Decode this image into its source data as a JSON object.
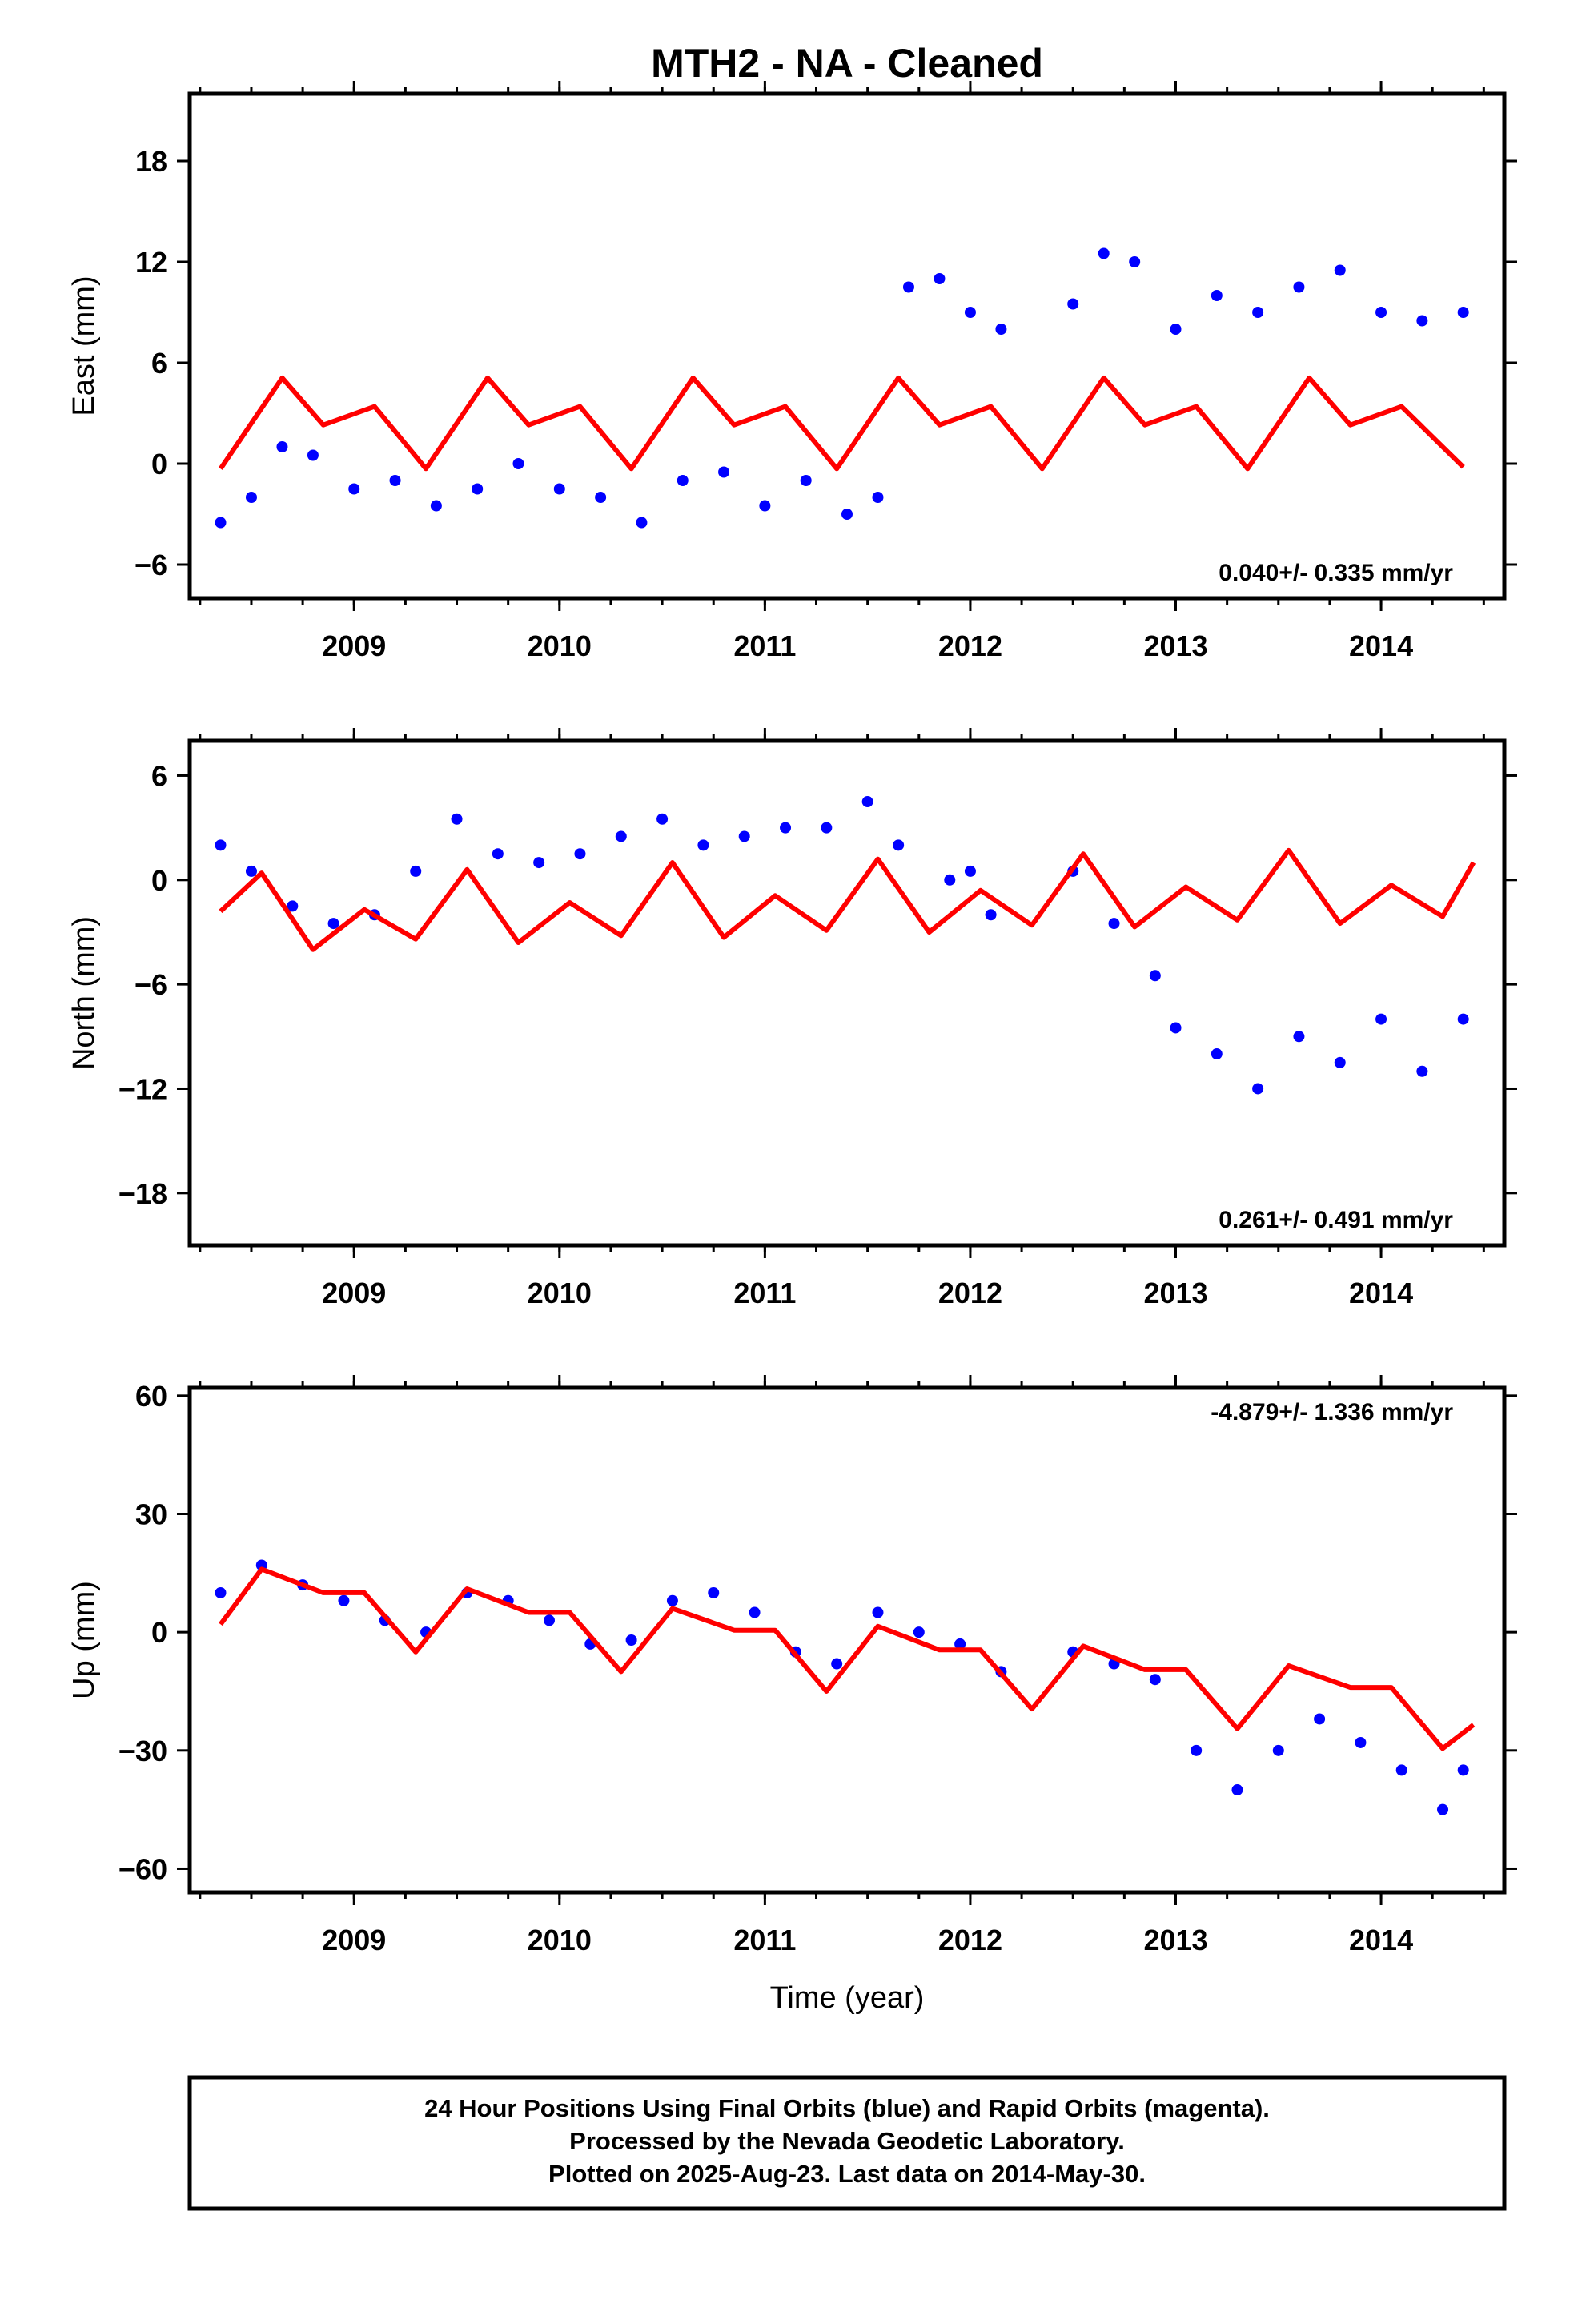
{
  "title": "MTH2  - NA - Cleaned",
  "colors": {
    "final_orbits": "#0000ff",
    "model": "#ff0000",
    "frame": "#000000"
  },
  "chart_data": [
    {
      "type": "scatter",
      "ylabel": "East (mm)",
      "xlabel": "",
      "xlim": [
        2008.2,
        2014.6
      ],
      "ylim": [
        -8,
        22
      ],
      "xticks": [
        2009,
        2010,
        2011,
        2012,
        2013,
        2014
      ],
      "yticks": [
        -6,
        0,
        6,
        12,
        18
      ],
      "rate": "0.040+/- 0.335 mm/yr",
      "rate_position": "bottom-right",
      "series": [
        {
          "role": "observations",
          "x": [
            2008.35,
            2008.5,
            2008.65,
            2008.8,
            2009.0,
            2009.2,
            2009.4,
            2009.6,
            2009.8,
            2010.0,
            2010.2,
            2010.4,
            2010.6,
            2010.8,
            2011.0,
            2011.2,
            2011.4,
            2011.55,
            2011.7,
            2011.85,
            2012.0,
            2012.15,
            2012.5,
            2012.65,
            2012.8,
            2013.0,
            2013.2,
            2013.4,
            2013.6,
            2013.8,
            2014.0,
            2014.2,
            2014.4
          ],
          "y": [
            -3.5,
            -2.0,
            1.0,
            0.5,
            -1.5,
            -1.0,
            -2.5,
            -1.5,
            0.0,
            -1.5,
            -2.0,
            -3.5,
            -1.0,
            -0.5,
            -2.5,
            -1.0,
            -3.0,
            -2.0,
            10.5,
            11.0,
            9.0,
            8.0,
            9.5,
            12.5,
            12.0,
            8.0,
            10.0,
            9.0,
            10.5,
            11.5,
            9.0,
            8.5,
            9.0
          ]
        },
        {
          "role": "model",
          "x": [
            2008.35,
            2008.65,
            2008.85,
            2009.1,
            2009.35,
            2009.65,
            2009.85,
            2010.1,
            2010.35,
            2010.65,
            2010.85,
            2011.1,
            2011.35,
            2011.65,
            2011.85,
            2012.1,
            2012.35,
            2012.65,
            2012.85,
            2013.1,
            2013.35,
            2013.65,
            2013.85,
            2014.1,
            2014.4
          ],
          "y": [
            -0.3,
            5.1,
            2.3,
            3.4,
            -0.3,
            5.1,
            2.3,
            3.4,
            -0.3,
            5.1,
            2.3,
            3.4,
            -0.3,
            5.1,
            2.3,
            3.4,
            -0.3,
            5.1,
            2.3,
            3.4,
            -0.3,
            5.1,
            2.3,
            3.4,
            -0.2
          ]
        }
      ]
    },
    {
      "type": "scatter",
      "ylabel": "North (mm)",
      "xlabel": "",
      "xlim": [
        2008.2,
        2014.6
      ],
      "ylim": [
        -21,
        8
      ],
      "xticks": [
        2009,
        2010,
        2011,
        2012,
        2013,
        2014
      ],
      "yticks": [
        -18,
        -12,
        -6,
        0,
        6
      ],
      "rate": "0.261+/- 0.491 mm/yr",
      "rate_position": "bottom-right",
      "series": [
        {
          "role": "observations",
          "x": [
            2008.35,
            2008.5,
            2008.7,
            2008.9,
            2009.1,
            2009.3,
            2009.5,
            2009.7,
            2009.9,
            2010.1,
            2010.3,
            2010.5,
            2010.7,
            2010.9,
            2011.1,
            2011.3,
            2011.5,
            2011.65,
            2011.9,
            2012.0,
            2012.1,
            2012.5,
            2012.7,
            2012.9,
            2013.0,
            2013.2,
            2013.4,
            2013.6,
            2013.8,
            2014.0,
            2014.2,
            2014.4
          ],
          "y": [
            2.0,
            0.5,
            -1.5,
            -2.5,
            -2.0,
            0.5,
            3.5,
            1.5,
            1.0,
            1.5,
            2.5,
            3.5,
            2.0,
            2.5,
            3.0,
            3.0,
            4.5,
            2.0,
            0.0,
            0.5,
            -2.0,
            0.5,
            -2.5,
            -5.5,
            -8.5,
            -10.0,
            -12.0,
            -9.0,
            -10.5,
            -8.0,
            -11.0,
            -8.0
          ]
        },
        {
          "role": "model",
          "x": [
            2008.35,
            2008.55,
            2008.8,
            2009.05,
            2009.3,
            2009.55,
            2009.8,
            2010.05,
            2010.3,
            2010.55,
            2010.8,
            2011.05,
            2011.3,
            2011.55,
            2011.8,
            2012.05,
            2012.3,
            2012.55,
            2012.8,
            2013.05,
            2013.3,
            2013.55,
            2013.8,
            2014.05,
            2014.3,
            2014.45
          ],
          "y": [
            -1.8,
            0.4,
            -4.0,
            -1.7,
            -3.4,
            0.6,
            -3.6,
            -1.3,
            -3.2,
            1.0,
            -3.3,
            -0.9,
            -2.9,
            1.2,
            -3.0,
            -0.6,
            -2.6,
            1.5,
            -2.7,
            -0.4,
            -2.3,
            1.7,
            -2.5,
            -0.3,
            -2.1,
            1.0
          ]
        }
      ]
    },
    {
      "type": "scatter",
      "ylabel": "Up (mm)",
      "xlabel": "Time (year)",
      "xlim": [
        2008.2,
        2014.6
      ],
      "ylim": [
        -66,
        62
      ],
      "xticks": [
        2009,
        2010,
        2011,
        2012,
        2013,
        2014
      ],
      "yticks": [
        -60,
        -30,
        0,
        30,
        60
      ],
      "rate": "-4.879+/- 1.336 mm/yr",
      "rate_position": "top-right",
      "series": [
        {
          "role": "observations",
          "x": [
            2008.35,
            2008.55,
            2008.75,
            2008.95,
            2009.15,
            2009.35,
            2009.55,
            2009.75,
            2009.95,
            2010.15,
            2010.35,
            2010.55,
            2010.75,
            2010.95,
            2011.15,
            2011.35,
            2011.55,
            2011.75,
            2011.95,
            2012.15,
            2012.5,
            2012.7,
            2012.9,
            2013.1,
            2013.3,
            2013.5,
            2013.7,
            2013.9,
            2014.1,
            2014.3,
            2014.4
          ],
          "y": [
            10.0,
            17.0,
            12.0,
            8.0,
            3.0,
            0.0,
            10.0,
            8.0,
            3.0,
            -3.0,
            -2.0,
            8.0,
            10.0,
            5.0,
            -5.0,
            -8.0,
            5.0,
            0.0,
            -3.0,
            -10.0,
            -5.0,
            -8.0,
            -12.0,
            -30.0,
            -40.0,
            -30.0,
            -22.0,
            -28.0,
            -35.0,
            -45.0,
            -35.0
          ]
        },
        {
          "role": "model",
          "x": [
            2008.35,
            2008.55,
            2008.85,
            2009.05,
            2009.3,
            2009.55,
            2009.85,
            2010.05,
            2010.3,
            2010.55,
            2010.85,
            2011.05,
            2011.3,
            2011.55,
            2011.85,
            2012.05,
            2012.3,
            2012.55,
            2012.85,
            2013.05,
            2013.3,
            2013.55,
            2013.85,
            2014.05,
            2014.3,
            2014.45
          ],
          "y": [
            2.0,
            16.0,
            10.0,
            10.0,
            -5.0,
            11.0,
            5.0,
            5.0,
            -10.0,
            6.0,
            0.5,
            0.5,
            -15.0,
            1.5,
            -4.5,
            -4.5,
            -19.5,
            -3.5,
            -9.5,
            -9.5,
            -24.5,
            -8.5,
            -14.0,
            -14.0,
            -29.5,
            -23.5
          ]
        }
      ]
    }
  ],
  "footer": {
    "line1": "24 Hour Positions Using Final Orbits (blue) and Rapid Orbits (magenta).",
    "line2": "Processed by the Nevada Geodetic Laboratory.",
    "line3": "Plotted on 2025-Aug-23. Last data on 2014-May-30."
  }
}
